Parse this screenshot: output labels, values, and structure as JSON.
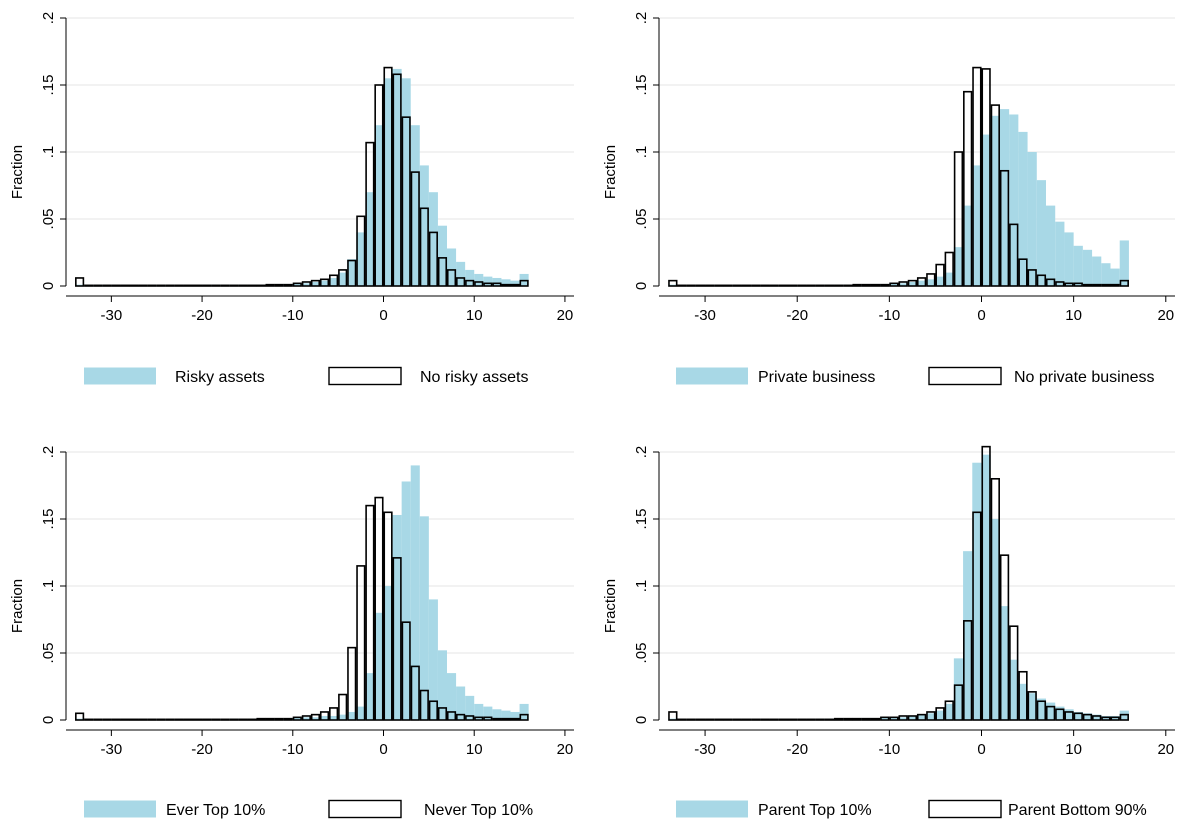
{
  "colors": {
    "filled": "#a8d8e6",
    "outline": "#000000",
    "grid": "#e6e6e6"
  },
  "chart_data": [
    {
      "type": "bar",
      "variant": "overlaid-histogram",
      "title": "",
      "xlabel": "",
      "ylabel": "Fraction",
      "xlim": [
        -35,
        21
      ],
      "ylim": [
        0,
        0.2
      ],
      "xticks": [
        "-30",
        "-20",
        "-10",
        "0",
        "10",
        "20"
      ],
      "yticks": [
        "0",
        ".05",
        ".1",
        ".15",
        ".2"
      ],
      "grid": true,
      "legend": "bottom",
      "bin_width": 1,
      "bin_starts": [
        -34,
        -33,
        -32,
        -31,
        -30,
        -29,
        -28,
        -27,
        -26,
        -25,
        -24,
        -23,
        -22,
        -21,
        -20,
        -19,
        -18,
        -17,
        -16,
        -15,
        -14,
        -13,
        -12,
        -11,
        -10,
        -9,
        -8,
        -7,
        -6,
        -5,
        -4,
        -3,
        -2,
        -1,
        0,
        1,
        2,
        3,
        4,
        5,
        6,
        7,
        8,
        9,
        10,
        11,
        12,
        13,
        14,
        15
      ],
      "series": [
        {
          "name": "Risky assets",
          "style": "filled",
          "values": [
            0.001,
            0.0005,
            0.0005,
            0.0005,
            0.0005,
            0.0005,
            0.0005,
            0.0005,
            0.0005,
            0.0005,
            0.0005,
            0.0005,
            0.0005,
            0.0005,
            0.001,
            0.001,
            0.001,
            0.001,
            0.001,
            0.001,
            0.001,
            0.001,
            0.0015,
            0.0015,
            0.002,
            0.002,
            0.003,
            0.004,
            0.006,
            0.01,
            0.02,
            0.04,
            0.07,
            0.12,
            0.155,
            0.162,
            0.155,
            0.12,
            0.09,
            0.07,
            0.045,
            0.028,
            0.018,
            0.012,
            0.009,
            0.007,
            0.006,
            0.005,
            0.004,
            0.009
          ]
        },
        {
          "name": "No risky assets",
          "style": "outline",
          "values": [
            0.006,
            0.0005,
            0.0005,
            0.0005,
            0.0005,
            0.0005,
            0.0005,
            0.0005,
            0.0005,
            0.0005,
            0.0005,
            0.0005,
            0.0005,
            0.0005,
            0.0005,
            0.0005,
            0.0005,
            0.0005,
            0.0005,
            0.0005,
            0.0005,
            0.001,
            0.001,
            0.001,
            0.002,
            0.003,
            0.004,
            0.005,
            0.008,
            0.012,
            0.019,
            0.052,
            0.107,
            0.15,
            0.163,
            0.158,
            0.126,
            0.085,
            0.058,
            0.04,
            0.021,
            0.012,
            0.006,
            0.004,
            0.003,
            0.002,
            0.002,
            0.001,
            0.001,
            0.004
          ]
        }
      ]
    },
    {
      "type": "bar",
      "variant": "overlaid-histogram",
      "title": "",
      "xlabel": "",
      "ylabel": "Fraction",
      "xlim": [
        -35,
        21
      ],
      "ylim": [
        0,
        0.2
      ],
      "xticks": [
        "-30",
        "-20",
        "-10",
        "0",
        "10",
        "20"
      ],
      "yticks": [
        "0",
        ".05",
        ".1",
        ".15",
        ".2"
      ],
      "grid": true,
      "legend": "bottom",
      "bin_width": 1,
      "bin_starts": [
        -34,
        -33,
        -32,
        -31,
        -30,
        -29,
        -28,
        -27,
        -26,
        -25,
        -24,
        -23,
        -22,
        -21,
        -20,
        -19,
        -18,
        -17,
        -16,
        -15,
        -14,
        -13,
        -12,
        -11,
        -10,
        -9,
        -8,
        -7,
        -6,
        -5,
        -4,
        -3,
        -2,
        -1,
        0,
        1,
        2,
        3,
        4,
        5,
        6,
        7,
        8,
        9,
        10,
        11,
        12,
        13,
        14,
        15
      ],
      "series": [
        {
          "name": "Private business",
          "style": "filled",
          "values": [
            0.001,
            0.0005,
            0.0005,
            0.0005,
            0.0005,
            0.0005,
            0.0005,
            0.0005,
            0.0005,
            0.0005,
            0.0005,
            0.0005,
            0.0005,
            0.0005,
            0.0005,
            0.0005,
            0.001,
            0.001,
            0.001,
            0.001,
            0.001,
            0.001,
            0.0015,
            0.0015,
            0.002,
            0.002,
            0.003,
            0.004,
            0.005,
            0.007,
            0.01,
            0.029,
            0.06,
            0.09,
            0.113,
            0.127,
            0.132,
            0.128,
            0.115,
            0.1,
            0.079,
            0.06,
            0.048,
            0.04,
            0.03,
            0.027,
            0.022,
            0.017,
            0.013,
            0.034
          ]
        },
        {
          "name": "No private business",
          "style": "outline",
          "values": [
            0.004,
            0.0005,
            0.0005,
            0.0005,
            0.0005,
            0.0005,
            0.0005,
            0.0005,
            0.0005,
            0.0005,
            0.0005,
            0.0005,
            0.0005,
            0.0005,
            0.0005,
            0.0005,
            0.0005,
            0.0005,
            0.0005,
            0.0005,
            0.001,
            0.001,
            0.001,
            0.001,
            0.002,
            0.003,
            0.004,
            0.006,
            0.009,
            0.016,
            0.025,
            0.1,
            0.145,
            0.163,
            0.162,
            0.135,
            0.086,
            0.046,
            0.02,
            0.012,
            0.008,
            0.005,
            0.003,
            0.002,
            0.002,
            0.001,
            0.001,
            0.001,
            0.001,
            0.004
          ]
        }
      ]
    },
    {
      "type": "bar",
      "variant": "overlaid-histogram",
      "title": "",
      "xlabel": "",
      "ylabel": "Fraction",
      "xlim": [
        -35,
        21
      ],
      "ylim": [
        0,
        0.2
      ],
      "xticks": [
        "-30",
        "-20",
        "-10",
        "0",
        "10",
        "20"
      ],
      "yticks": [
        "0",
        ".05",
        ".1",
        ".15",
        ".2"
      ],
      "grid": true,
      "legend": "bottom",
      "bin_width": 1,
      "bin_starts": [
        -34,
        -33,
        -32,
        -31,
        -30,
        -29,
        -28,
        -27,
        -26,
        -25,
        -24,
        -23,
        -22,
        -21,
        -20,
        -19,
        -18,
        -17,
        -16,
        -15,
        -14,
        -13,
        -12,
        -11,
        -10,
        -9,
        -8,
        -7,
        -6,
        -5,
        -4,
        -3,
        -2,
        -1,
        0,
        1,
        2,
        3,
        4,
        5,
        6,
        7,
        8,
        9,
        10,
        11,
        12,
        13,
        14,
        15
      ],
      "series": [
        {
          "name": "Ever Top 10%",
          "style": "filled",
          "values": [
            0.001,
            0.0005,
            0.0005,
            0.0005,
            0.0005,
            0.0005,
            0.0005,
            0.0005,
            0.0005,
            0.0005,
            0.0005,
            0.0005,
            0.0005,
            0.0005,
            0.0005,
            0.0005,
            0.0005,
            0.001,
            0.001,
            0.001,
            0.001,
            0.001,
            0.001,
            0.001,
            0.0015,
            0.002,
            0.002,
            0.003,
            0.003,
            0.004,
            0.006,
            0.01,
            0.035,
            0.08,
            0.1,
            0.153,
            0.178,
            0.19,
            0.152,
            0.09,
            0.052,
            0.035,
            0.025,
            0.018,
            0.012,
            0.01,
            0.008,
            0.007,
            0.006,
            0.012
          ]
        },
        {
          "name": "Never Top 10%",
          "style": "outline",
          "values": [
            0.005,
            0.0005,
            0.0005,
            0.0005,
            0.0005,
            0.0005,
            0.0005,
            0.0005,
            0.0005,
            0.0005,
            0.0005,
            0.0005,
            0.0005,
            0.0005,
            0.0005,
            0.0005,
            0.0005,
            0.0005,
            0.0005,
            0.0005,
            0.001,
            0.001,
            0.001,
            0.001,
            0.002,
            0.003,
            0.004,
            0.006,
            0.009,
            0.019,
            0.054,
            0.115,
            0.16,
            0.166,
            0.155,
            0.121,
            0.073,
            0.04,
            0.022,
            0.014,
            0.009,
            0.006,
            0.004,
            0.003,
            0.002,
            0.002,
            0.001,
            0.001,
            0.001,
            0.004
          ]
        }
      ]
    },
    {
      "type": "bar",
      "variant": "overlaid-histogram",
      "title": "",
      "xlabel": "",
      "ylabel": "Fraction",
      "xlim": [
        -35,
        21
      ],
      "ylim": [
        0,
        0.2
      ],
      "xticks": [
        "-30",
        "-20",
        "-10",
        "0",
        "10",
        "20"
      ],
      "yticks": [
        "0",
        ".05",
        ".1",
        ".15",
        ".2"
      ],
      "grid": true,
      "legend": "bottom",
      "bin_width": 1,
      "bin_starts": [
        -34,
        -33,
        -32,
        -31,
        -30,
        -29,
        -28,
        -27,
        -26,
        -25,
        -24,
        -23,
        -22,
        -21,
        -20,
        -19,
        -18,
        -17,
        -16,
        -15,
        -14,
        -13,
        -12,
        -11,
        -10,
        -9,
        -8,
        -7,
        -6,
        -5,
        -4,
        -3,
        -2,
        -1,
        0,
        1,
        2,
        3,
        4,
        5,
        6,
        7,
        8,
        9,
        10,
        11,
        12,
        13,
        14,
        15
      ],
      "series": [
        {
          "name": "Parent Top 10%",
          "style": "filled",
          "values": [
            0.001,
            0.0005,
            0.0005,
            0.0005,
            0.0005,
            0.0005,
            0.0005,
            0.0005,
            0.0005,
            0.0005,
            0.0005,
            0.0005,
            0.0005,
            0.0005,
            0.0005,
            0.0005,
            0.001,
            0.001,
            0.001,
            0.001,
            0.001,
            0.0015,
            0.0015,
            0.002,
            0.002,
            0.002,
            0.003,
            0.004,
            0.005,
            0.007,
            0.012,
            0.046,
            0.126,
            0.192,
            0.198,
            0.15,
            0.085,
            0.045,
            0.027,
            0.02,
            0.016,
            0.013,
            0.01,
            0.008,
            0.006,
            0.005,
            0.004,
            0.003,
            0.003,
            0.007
          ]
        },
        {
          "name": "Parent Bottom 90%",
          "style": "outline",
          "values": [
            0.006,
            0.0005,
            0.0005,
            0.0005,
            0.0005,
            0.0005,
            0.0005,
            0.0005,
            0.0005,
            0.0005,
            0.0005,
            0.0005,
            0.0005,
            0.0005,
            0.0005,
            0.0005,
            0.0005,
            0.0005,
            0.001,
            0.001,
            0.001,
            0.001,
            0.001,
            0.002,
            0.002,
            0.003,
            0.003,
            0.004,
            0.006,
            0.009,
            0.014,
            0.026,
            0.074,
            0.155,
            0.204,
            0.18,
            0.123,
            0.07,
            0.036,
            0.021,
            0.014,
            0.01,
            0.008,
            0.006,
            0.005,
            0.004,
            0.003,
            0.002,
            0.002,
            0.004
          ]
        }
      ]
    }
  ]
}
